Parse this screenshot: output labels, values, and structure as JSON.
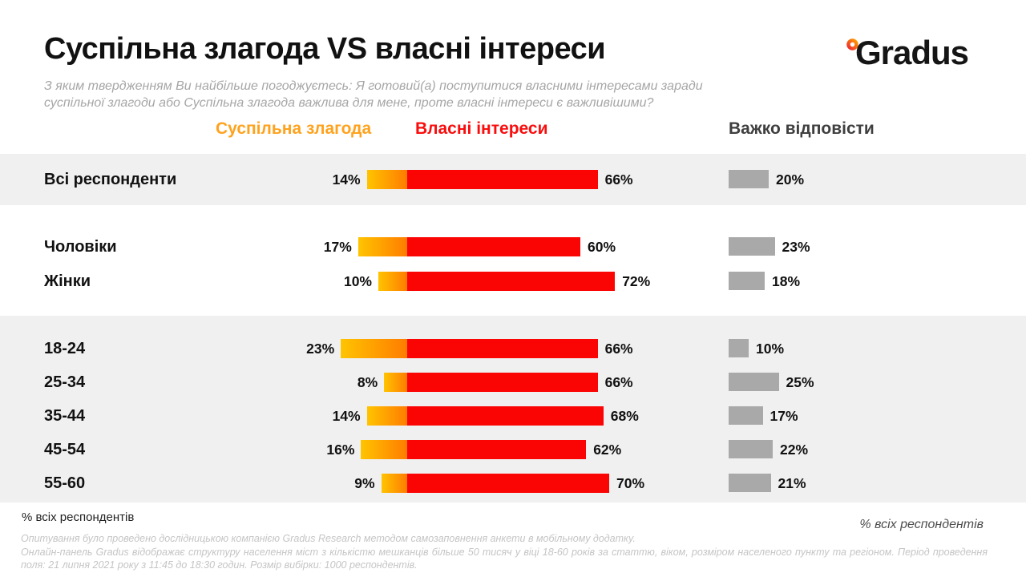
{
  "header": {
    "title": "Суспільна злагода VS власні інтереси",
    "subtitle": "З яким твердженням Ви найбільше погоджуєтесь: Я готовий(а) поступитися власними інтересами заради суспільної злагоди або Суспільна злагода важлива для мене, проте власні інтереси є важливішими?"
  },
  "brand": {
    "name": "Gradus"
  },
  "legend": {
    "harmony": "Суспільна злагода",
    "own": "Власні інтереси",
    "hard": "Важко відповісти"
  },
  "colors": {
    "harmony_gradient_start": "#FFC400",
    "harmony_gradient_end": "#FF7C00",
    "own_red": "#FB0404",
    "hard_gray": "#A9A9A9",
    "band_gray": "#F0F0F0",
    "legend_harmony_text": "#FFA21D",
    "legend_own_text": "#F90D0D",
    "legend_hard_text": "#3F3F3F",
    "logo_ring_start": "#FF9A00",
    "logo_ring_end": "#EF2B2D"
  },
  "footer": {
    "note_left": "% всіх респондентів",
    "note_right": "% всіх респондентів",
    "methodology_1": "Опитування було проведено дослідницькою компанією Gradus Research методом самозаповнення анкети в мобільному додатку.",
    "methodology_2": "Онлайн-панель Gradus відображає структуру населення міст з кількістю мешканців більше 50 тисяч у віці 18-60 років за статтю, віком, розміром населеного пункту та регіоном. Період проведення поля: 21 липня 2021 року з 11:45 до 18:30 годин. Розмір вибірки: 1000 респондентів."
  },
  "chart_data": {
    "type": "bar",
    "variant": "horizontal-diverging",
    "unit": "%",
    "title": "Суспільна злагода VS власні інтереси",
    "series": [
      "Суспільна злагода",
      "Власні інтереси",
      "Важко відповісти"
    ],
    "categories": [
      "Всі респонденти",
      "Чоловіки",
      "Жінки",
      "18-24",
      "25-34",
      "35-44",
      "45-54",
      "55-60"
    ],
    "rows": [
      {
        "label": "Всі респонденти",
        "harmony": 14,
        "own": 66,
        "hard": 20
      },
      {
        "label": "Чоловіки",
        "harmony": 17,
        "own": 60,
        "hard": 23
      },
      {
        "label": "Жінки",
        "harmony": 10,
        "own": 72,
        "hard": 18
      },
      {
        "label": "18-24",
        "harmony": 23,
        "own": 66,
        "hard": 10
      },
      {
        "label": "25-34",
        "harmony": 8,
        "own": 66,
        "hard": 25
      },
      {
        "label": "35-44",
        "harmony": 14,
        "own": 68,
        "hard": 17
      },
      {
        "label": "45-54",
        "harmony": 16,
        "own": 62,
        "hard": 22
      },
      {
        "label": "55-60",
        "harmony": 9,
        "own": 70,
        "hard": 21
      }
    ],
    "legend_position": "top",
    "grid": false,
    "highlighted_row_groups": [
      [
        0
      ],
      [
        3,
        4,
        5,
        6,
        7
      ]
    ]
  }
}
